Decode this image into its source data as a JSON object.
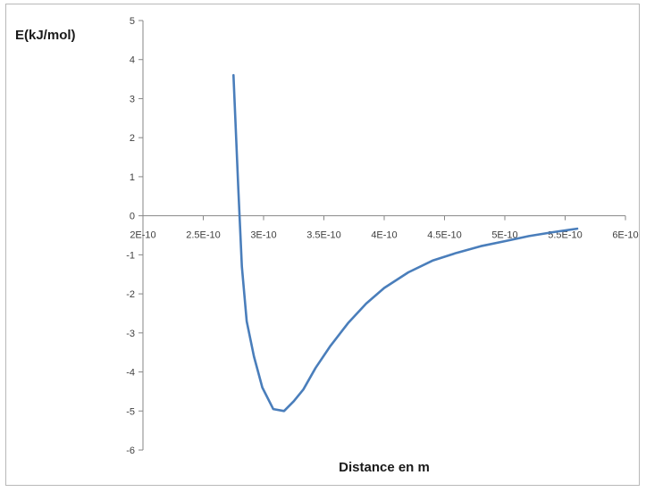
{
  "chart_data": {
    "type": "line",
    "title": "",
    "ylabel": "E(kJ/mol)",
    "xlabel": "Distance en m",
    "xlim": [
      2e-10,
      6e-10
    ],
    "ylim": [
      -6,
      5
    ],
    "x_tick_labels": [
      "2E-10",
      "2.5E-10",
      "3E-10",
      "3.5E-10",
      "4E-10",
      "4.5E-10",
      "5E-10",
      "5.5E-10",
      "6E-10"
    ],
    "x_tick_values": [
      2e-10,
      2.5e-10,
      3e-10,
      3.5e-10,
      4e-10,
      4.5e-10,
      5e-10,
      5.5e-10,
      6e-10
    ],
    "y_tick_labels": [
      "5",
      "4",
      "3",
      "2",
      "1",
      "0",
      "-1",
      "-2",
      "-3",
      "-4",
      "-5",
      "-6"
    ],
    "y_tick_values": [
      5,
      4,
      3,
      2,
      1,
      0,
      -1,
      -2,
      -3,
      -4,
      -5,
      -6
    ],
    "grid": false,
    "legend": "none",
    "series": [
      {
        "color": "#4a7ebb",
        "x": [
          2.75e-10,
          2.79e-10,
          2.82e-10,
          2.86e-10,
          2.92e-10,
          2.99e-10,
          3.08e-10,
          3.17e-10,
          3.25e-10,
          3.33e-10,
          3.43e-10,
          3.55e-10,
          3.7e-10,
          3.85e-10,
          4e-10,
          4.2e-10,
          4.4e-10,
          4.6e-10,
          4.8e-10,
          5e-10,
          5.2e-10,
          5.4e-10,
          5.6e-10
        ],
        "y": [
          3.6,
          0.7,
          -1.3,
          -2.7,
          -3.6,
          -4.4,
          -4.95,
          -5.0,
          -4.75,
          -4.45,
          -3.9,
          -3.35,
          -2.75,
          -2.25,
          -1.85,
          -1.45,
          -1.15,
          -0.95,
          -0.78,
          -0.65,
          -0.52,
          -0.42,
          -0.33
        ]
      }
    ]
  }
}
